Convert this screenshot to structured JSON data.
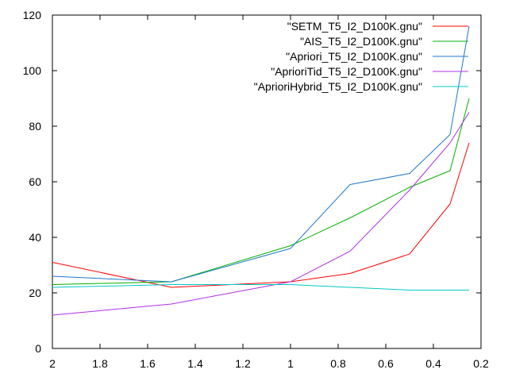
{
  "chart_data": {
    "type": "line",
    "title": "",
    "xlabel": "",
    "ylabel": "",
    "x_reversed": true,
    "xlim": [
      2,
      0.2
    ],
    "ylim": [
      0,
      120
    ],
    "x_ticks": [
      2,
      1.8,
      1.6,
      1.4,
      1.2,
      1,
      0.8,
      0.6,
      0.4,
      0.2
    ],
    "x_tick_labels": [
      "2",
      "1.8",
      "1.6",
      "1.4",
      "1.2",
      "1",
      "0.8",
      "0.6",
      "0.4",
      "0.2"
    ],
    "y_ticks": [
      0,
      20,
      40,
      60,
      80,
      100,
      120
    ],
    "y_tick_labels": [
      "0",
      "20",
      "40",
      "60",
      "80",
      "100",
      "120"
    ],
    "grid": false,
    "legend_position": "top-right",
    "series": [
      {
        "name": "\"SETM_T5_I2_D100K.gnu\"",
        "color": "#ff0000",
        "points": [
          [
            2,
            31
          ],
          [
            1.5,
            22
          ],
          [
            1,
            24
          ],
          [
            0.75,
            27
          ],
          [
            0.5,
            34
          ],
          [
            0.33,
            52
          ],
          [
            0.25,
            74
          ]
        ]
      },
      {
        "name": "\"AIS_T5_I2_D100K.gnu\"",
        "color": "#00b000",
        "points": [
          [
            2,
            23
          ],
          [
            1.5,
            24
          ],
          [
            1,
            37
          ],
          [
            0.75,
            47
          ],
          [
            0.5,
            58
          ],
          [
            0.33,
            64
          ],
          [
            0.25,
            90
          ]
        ]
      },
      {
        "name": "\"Apriori_T5_I2_D100K.gnu\"",
        "color": "#1f78c8",
        "points": [
          [
            2,
            26
          ],
          [
            1.5,
            24
          ],
          [
            1,
            36
          ],
          [
            0.75,
            59
          ],
          [
            0.5,
            63
          ],
          [
            0.33,
            77
          ],
          [
            0.25,
            116
          ]
        ]
      },
      {
        "name": "\"AprioriTid_T5_I2_D100K.gnu\"",
        "color": "#b030e0",
        "points": [
          [
            2,
            12
          ],
          [
            1.5,
            16
          ],
          [
            1,
            24
          ],
          [
            0.75,
            35
          ],
          [
            0.5,
            57
          ],
          [
            0.33,
            74
          ],
          [
            0.25,
            85
          ]
        ]
      },
      {
        "name": "\"AprioriHybrid_T5_I2_D100K.gnu\"",
        "color": "#00c8c8",
        "points": [
          [
            2,
            22
          ],
          [
            1.5,
            23
          ],
          [
            1,
            23
          ],
          [
            0.75,
            22
          ],
          [
            0.5,
            21
          ],
          [
            0.33,
            21
          ],
          [
            0.25,
            21
          ]
        ]
      }
    ]
  }
}
